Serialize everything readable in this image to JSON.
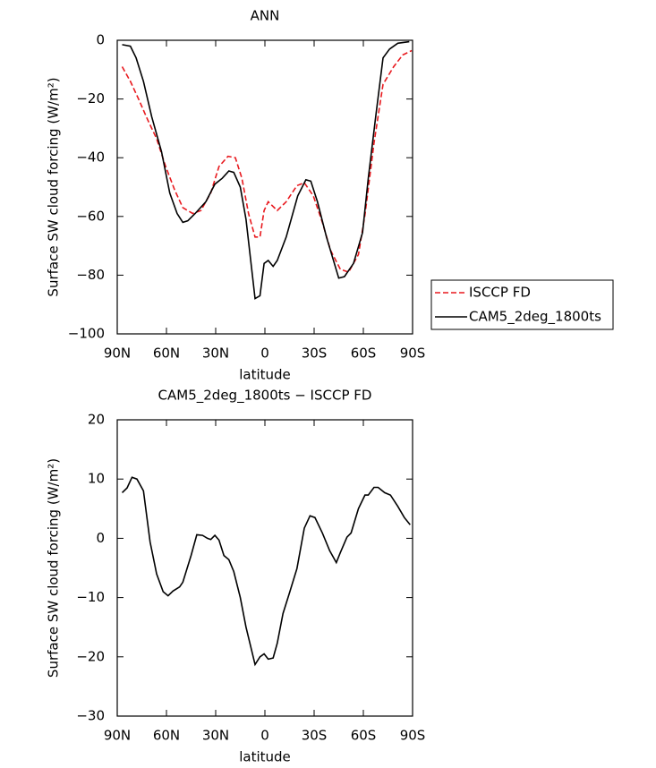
{
  "chart_data": [
    {
      "type": "line",
      "title": "ANN",
      "xlabel": "latitude",
      "ylabel": "Surface SW cloud forcing (W/m²)",
      "xlim": [
        90,
        -90
      ],
      "xticks": [
        {
          "value": 90,
          "label": "90N"
        },
        {
          "value": 60,
          "label": "60N"
        },
        {
          "value": 30,
          "label": "30N"
        },
        0,
        {
          "value": -30,
          "label": "30S"
        },
        {
          "value": -60,
          "label": "60S"
        },
        {
          "value": -90,
          "label": "90S"
        }
      ],
      "ylim": [
        -100,
        0
      ],
      "yticks": [
        0,
        -20,
        -40,
        -60,
        -80,
        -100
      ],
      "legend": "right",
      "series": [
        {
          "name": "ISCCP FD",
          "color": "#e8191e",
          "linestyle": "dashed",
          "x": [
            87,
            82,
            77,
            71.5,
            66,
            60.5,
            55,
            50,
            44,
            39,
            33,
            28,
            22.5,
            18,
            14,
            10,
            6,
            3,
            0.5,
            -2,
            -7.5,
            -13,
            -19.5,
            -24,
            -29.5,
            -35,
            -40,
            -46,
            -51,
            -57,
            -61,
            -66.5,
            -72,
            -78.5,
            -84,
            -89.5
          ],
          "values": [
            -9,
            -14,
            -20,
            -27,
            -33.5,
            -43,
            -51,
            -57,
            -59,
            -58,
            -52,
            -43,
            -39.5,
            -40,
            -47,
            -59,
            -67,
            -67,
            -58,
            -55,
            -58,
            -55,
            -49.5,
            -48.5,
            -53,
            -62,
            -71.5,
            -78,
            -79,
            -73,
            -59.5,
            -35,
            -15,
            -9,
            -5,
            -3.5
          ]
        },
        {
          "name": "CAM5_2deg_1800ts",
          "color": "#000000",
          "linestyle": "solid",
          "x": [
            87,
            82,
            78.5,
            74,
            69,
            63,
            58,
            53.5,
            50,
            47,
            42.5,
            36,
            30.5,
            26,
            22,
            19,
            15,
            11.5,
            6,
            3,
            0.5,
            -2,
            -5,
            -7.5,
            -13,
            -20,
            -25,
            -28,
            -32,
            -37.5,
            -45,
            -48.5,
            -54,
            -59.5,
            -63,
            -67.5,
            -72,
            -76,
            -81,
            -88
          ],
          "values": [
            -1.5,
            -2,
            -6,
            -14,
            -26,
            -38,
            -52,
            -59,
            -62,
            -61.5,
            -59,
            -55,
            -49,
            -47,
            -44.5,
            -45,
            -50,
            -61,
            -88,
            -87,
            -76,
            -75,
            -77,
            -75,
            -67,
            -53,
            -47.5,
            -48,
            -55,
            -67,
            -81,
            -80.5,
            -76,
            -65.5,
            -47,
            -26,
            -6,
            -3,
            -1,
            -0.5
          ]
        }
      ]
    },
    {
      "type": "line",
      "title": "CAM5_2deg_1800ts − ISCCP FD",
      "xlabel": "latitude",
      "ylabel": "Surface SW cloud forcing (W/m²)",
      "xlim": [
        90,
        -90
      ],
      "xticks": [
        {
          "value": 90,
          "label": "90N"
        },
        {
          "value": 60,
          "label": "60N"
        },
        {
          "value": 30,
          "label": "30N"
        },
        0,
        {
          "value": -30,
          "label": "30S"
        },
        {
          "value": -60,
          "label": "60S"
        },
        {
          "value": -90,
          "label": "90S"
        }
      ],
      "ylim": [
        -30,
        20
      ],
      "yticks": [
        20,
        10,
        0,
        -10,
        -20,
        -30
      ],
      "series": [
        {
          "color": "#000000",
          "linestyle": "solid",
          "x": [
            87,
            84,
            81,
            78,
            74,
            70,
            66,
            62,
            59,
            56,
            52,
            50,
            45,
            41.5,
            38,
            35,
            33,
            30.5,
            28,
            25,
            22,
            19,
            15,
            11.5,
            6,
            3,
            0.5,
            -2,
            -5,
            -7.5,
            -11,
            -15,
            -19.5,
            -24,
            -27.5,
            -30.5,
            -35,
            -39.5,
            -43.5,
            -46,
            -50,
            -52.5,
            -57,
            -61,
            -63,
            -66.5,
            -69,
            -73,
            -76.5,
            -81,
            -85,
            -88.5
          ],
          "values": [
            7.7,
            8.5,
            10.3,
            10,
            8,
            -0.6,
            -6,
            -9,
            -9.7,
            -8.9,
            -8.2,
            -7.4,
            -2.9,
            0.6,
            0.5,
            0,
            -0.2,
            0.5,
            -0.3,
            -2.9,
            -3.6,
            -5.6,
            -10,
            -15,
            -21.3,
            -20,
            -19.5,
            -20.4,
            -20.2,
            -17.7,
            -12.7,
            -9.2,
            -5.1,
            1.7,
            3.8,
            3.5,
            0.9,
            -2.1,
            -4.1,
            -2.4,
            0.2,
            0.9,
            5,
            7.3,
            7.3,
            8.6,
            8.6,
            7.7,
            7.3,
            5.4,
            3.5,
            2.3
          ]
        }
      ]
    }
  ]
}
